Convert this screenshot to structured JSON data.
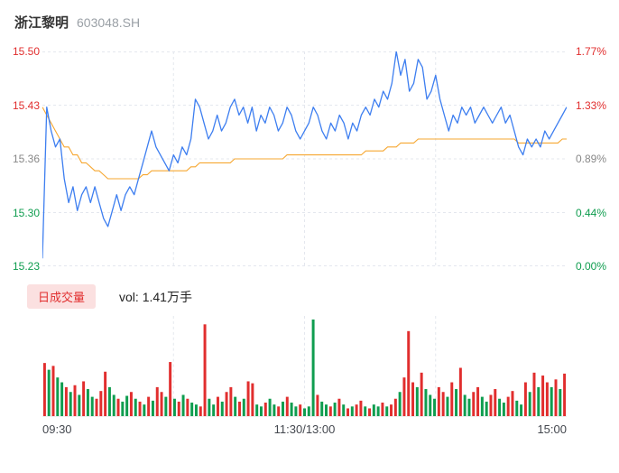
{
  "header": {
    "title": "浙江黎明",
    "code": "603048.SH"
  },
  "colors": {
    "up": "#e12e2e",
    "down": "#0f9d4f",
    "flat": "#888888",
    "price_line": "#3d7ef0",
    "avg_line": "#f6a731",
    "grid": "#e4e7ee",
    "pill_bg": "#fbe0e0"
  },
  "axis": {
    "left": [
      {
        "text": "15.50"
      },
      {
        "text": "15.43"
      },
      {
        "text": "15.36"
      },
      {
        "text": "15.30"
      },
      {
        "text": "15.23"
      }
    ],
    "right": [
      {
        "text": "1.77%"
      },
      {
        "text": "1.33%"
      },
      {
        "text": "0.89%"
      },
      {
        "text": "0.44%"
      },
      {
        "text": "0.00%"
      }
    ],
    "time": [
      "09:30",
      "11:30/13:00",
      "15:00"
    ]
  },
  "volume_header": {
    "label": "日成交量",
    "value": "vol: 1.41万手"
  },
  "chart_data": {
    "type": "line",
    "title": "浙江黎明 603048.SH 分时走势",
    "prev_close": 15.23,
    "ylim": [
      15.23,
      15.5
    ],
    "pct_lim": [
      0.0,
      1.77
    ],
    "y_ticks": [
      15.5,
      15.43,
      15.36,
      15.3,
      15.23
    ],
    "pct_ticks": [
      "1.77%",
      "1.33%",
      "0.89%",
      "0.44%",
      "0.00%"
    ],
    "x_ticks": [
      "09:30",
      "11:30/13:00",
      "15:00"
    ],
    "grid": true,
    "series": [
      {
        "name": "price",
        "values": [
          15.24,
          15.43,
          15.4,
          15.38,
          15.39,
          15.34,
          15.31,
          15.33,
          15.3,
          15.32,
          15.33,
          15.31,
          15.33,
          15.31,
          15.29,
          15.28,
          15.3,
          15.32,
          15.3,
          15.32,
          15.33,
          15.32,
          15.34,
          15.36,
          15.38,
          15.4,
          15.38,
          15.37,
          15.36,
          15.35,
          15.37,
          15.36,
          15.38,
          15.37,
          15.39,
          15.44,
          15.43,
          15.41,
          15.39,
          15.4,
          15.42,
          15.4,
          15.41,
          15.43,
          15.44,
          15.42,
          15.43,
          15.41,
          15.43,
          15.4,
          15.42,
          15.41,
          15.43,
          15.42,
          15.4,
          15.41,
          15.43,
          15.42,
          15.4,
          15.39,
          15.4,
          15.41,
          15.43,
          15.42,
          15.4,
          15.39,
          15.41,
          15.4,
          15.42,
          15.41,
          15.39,
          15.41,
          15.4,
          15.42,
          15.43,
          15.42,
          15.44,
          15.43,
          15.45,
          15.44,
          15.46,
          15.5,
          15.47,
          15.49,
          15.45,
          15.46,
          15.49,
          15.48,
          15.44,
          15.45,
          15.47,
          15.44,
          15.42,
          15.4,
          15.42,
          15.41,
          15.43,
          15.42,
          15.43,
          15.41,
          15.42,
          15.43,
          15.42,
          15.41,
          15.42,
          15.43,
          15.41,
          15.42,
          15.4,
          15.38,
          15.37,
          15.39,
          15.38,
          15.39,
          15.38,
          15.4,
          15.39,
          15.4,
          15.41,
          15.42,
          15.43
        ]
      },
      {
        "name": "avg",
        "values": [
          15.43,
          15.42,
          15.41,
          15.4,
          15.39,
          15.38,
          15.38,
          15.37,
          15.37,
          15.36,
          15.36,
          15.355,
          15.35,
          15.35,
          15.345,
          15.34,
          15.34,
          15.34,
          15.34,
          15.34,
          15.34,
          15.34,
          15.34,
          15.345,
          15.345,
          15.35,
          15.35,
          15.35,
          15.35,
          15.35,
          15.35,
          15.35,
          15.35,
          15.35,
          15.355,
          15.355,
          15.36,
          15.36,
          15.36,
          15.36,
          15.36,
          15.36,
          15.36,
          15.36,
          15.365,
          15.365,
          15.365,
          15.365,
          15.365,
          15.365,
          15.365,
          15.365,
          15.365,
          15.365,
          15.365,
          15.365,
          15.37,
          15.37,
          15.37,
          15.37,
          15.37,
          15.37,
          15.37,
          15.37,
          15.37,
          15.37,
          15.37,
          15.37,
          15.37,
          15.37,
          15.37,
          15.37,
          15.37,
          15.37,
          15.375,
          15.375,
          15.375,
          15.375,
          15.375,
          15.38,
          15.38,
          15.38,
          15.385,
          15.385,
          15.385,
          15.385,
          15.39,
          15.39,
          15.39,
          15.39,
          15.39,
          15.39,
          15.39,
          15.39,
          15.39,
          15.39,
          15.39,
          15.39,
          15.39,
          15.39,
          15.39,
          15.39,
          15.39,
          15.39,
          15.39,
          15.39,
          15.39,
          15.39,
          15.39,
          15.385,
          15.385,
          15.385,
          15.385,
          15.385,
          15.385,
          15.385,
          15.385,
          15.385,
          15.385,
          15.39,
          15.39
        ]
      }
    ],
    "volume": {
      "total_label": "vol: 1.41万手",
      "values": [
        55,
        48,
        52,
        40,
        35,
        30,
        25,
        32,
        22,
        36,
        28,
        20,
        18,
        26,
        46,
        30,
        22,
        18,
        15,
        21,
        25,
        18,
        15,
        12,
        20,
        16,
        30,
        25,
        20,
        56,
        18,
        15,
        22,
        18,
        14,
        12,
        10,
        95,
        18,
        12,
        20,
        15,
        25,
        30,
        20,
        15,
        18,
        36,
        34,
        12,
        10,
        14,
        18,
        12,
        10,
        15,
        20,
        14,
        10,
        12,
        8,
        10,
        100,
        22,
        15,
        12,
        10,
        14,
        18,
        12,
        8,
        10,
        12,
        16,
        10,
        8,
        12,
        10,
        14,
        10,
        12,
        18,
        25,
        40,
        88,
        35,
        30,
        45,
        28,
        22,
        18,
        30,
        25,
        20,
        35,
        28,
        50,
        22,
        18,
        25,
        30,
        20,
        15,
        22,
        28,
        18,
        14,
        20,
        26,
        16,
        12,
        35,
        25,
        45,
        30,
        42,
        35,
        30,
        38,
        28,
        44
      ],
      "dirs": "rgrggrgrgrggrrrggrggrgrgrgrrgrgrgrggrrggrgrrgrgrrggrggrgrggrgggrggrgrgrgrrgrggrgrrgrrrgrgggrrgrgrggrrggrrggrrggrgrgrrgrgr"
    }
  }
}
